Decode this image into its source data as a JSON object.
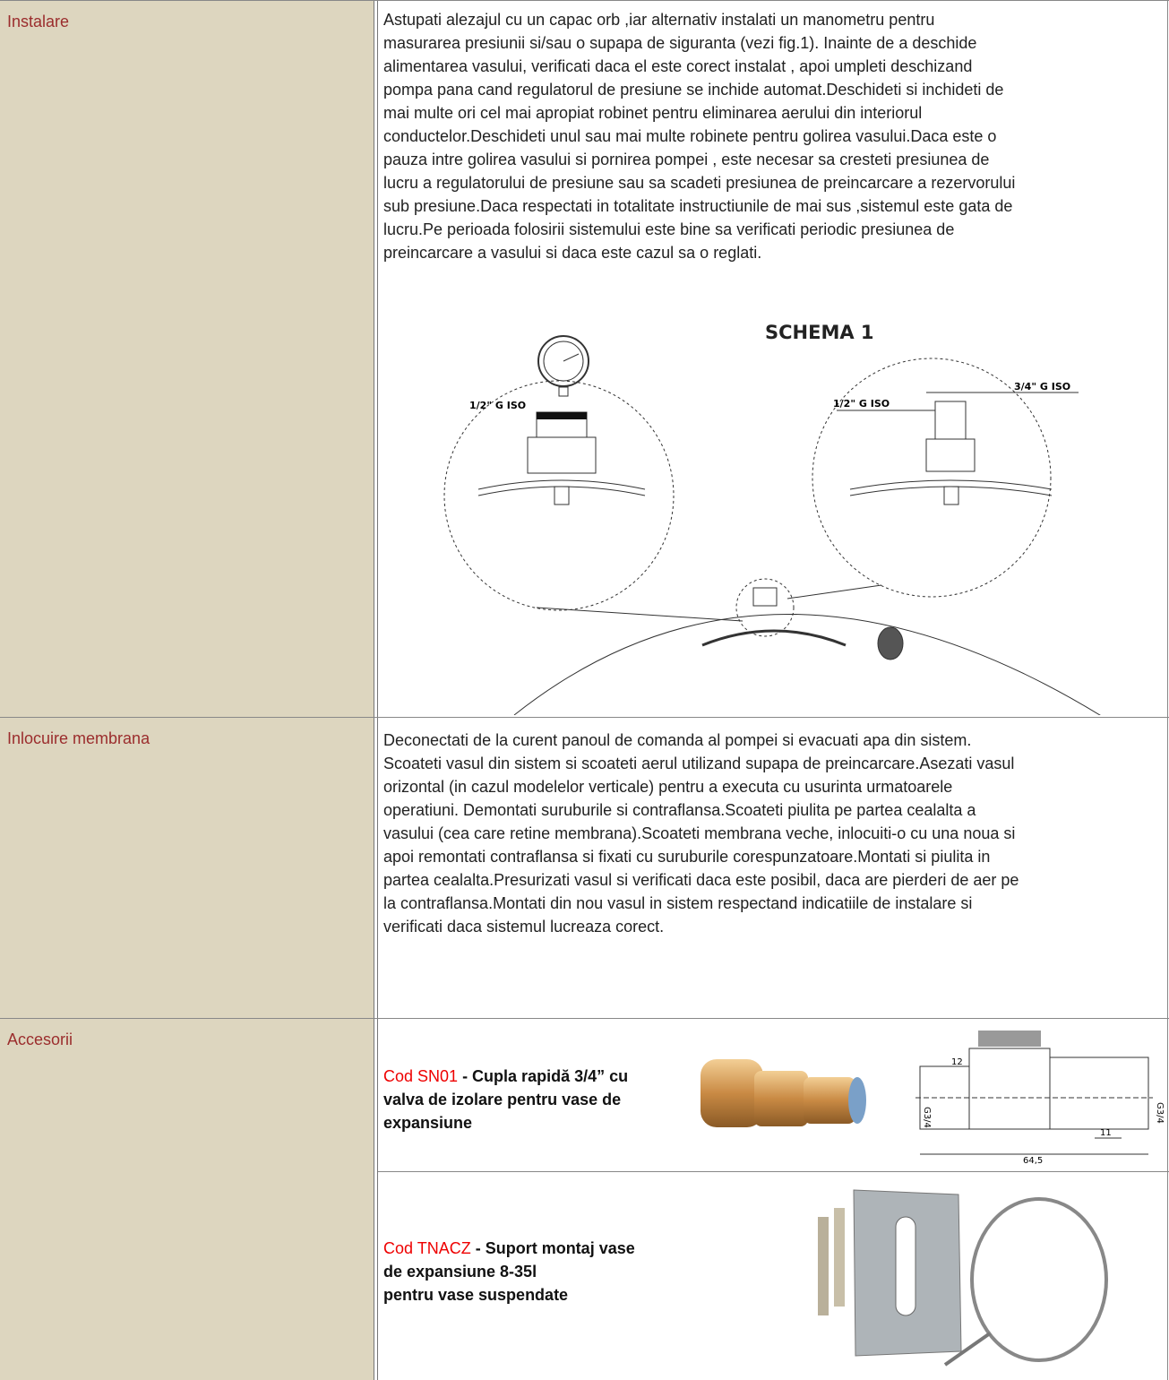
{
  "rows": [
    {
      "label": "Instalare",
      "lines": [
        "Astupati alezajul cu un capac orb ,iar alternativ instalati un manometru pentru",
        "masurarea presiunii si/sau o supapa de siguranta (vezi fig.1). Inainte de a deschide",
        "alimentarea vasului, verificati daca el este corect instalat , apoi umpleti deschizand",
        "pompa pana cand regulatorul de presiune se inchide automat.Deschideti si inchideti de",
        "mai multe ori cel mai apropiat robinet pentru eliminarea aerului din interiorul",
        "conductelor.Deschideti unul sau mai multe robinete pentru golirea vasului.Daca este o",
        "pauza intre golirea vasului si pornirea pompei , este necesar sa cresteti presiunea de",
        "lucru a regulatorului de presiune sau sa scadeti presiunea de preincarcare a rezervorului",
        "sub presiune.Daca respectati in totalitate instructiunile de mai sus ,sistemul este gata de",
        "lucru.Pe perioada folosirii sistemului este bine sa verificati periodic presiunea de",
        "preincarcare a vasului si daca este cazul sa o reglati."
      ],
      "figure": {
        "title": "SCHEMA 1",
        "labels": [
          "1/2\" G ISO",
          "1/2\" G ISO",
          "3/4\" G ISO"
        ]
      }
    },
    {
      "label": "Inlocuire membrana",
      "lines": [
        "Deconectati de la curent panoul de comanda al pompei si evacuati apa din sistem.",
        "Scoateti vasul din sistem si scoateti aerul utilizand supapa de preincarcare.Asezati vasul",
        "orizontal (in cazul modelelor verticale) pentru a executa cu usurinta urmatoarele",
        "operatiuni. Demontati suruburile si contraflansa.Scoateti piulita pe partea cealalta a",
        "vasului (cea care retine membrana).Scoateti membrana veche, inlocuiti-o cu una noua si",
        "apoi remontati contraflansa si fixati cu suruburile corespunzatoare.Montati si piulita in",
        "partea cealalta.Presurizati vasul si verificati daca este posibil, daca are pierderi de aer pe",
        "la contraflansa.Montati din nou vasul in sistem respectand indicatiile de instalare si",
        "verificati daca sistemul lucreaza corect."
      ]
    },
    {
      "label": "Accesorii",
      "items": [
        {
          "code": "Cod SN01",
          "lines": [
            " - Cupla rapidă 3/4” cu",
            "valva de izolare pentru vase de",
            "expansiune"
          ],
          "drawing_labels": [
            "12",
            "G3/4",
            "G3/4",
            "11",
            "64,5"
          ]
        },
        {
          "code": "Cod TNACZ",
          "lines": [
            " - Suport montaj vase",
            "de expansiune 8-35l",
            "pentru vase suspendate"
          ]
        }
      ]
    }
  ]
}
